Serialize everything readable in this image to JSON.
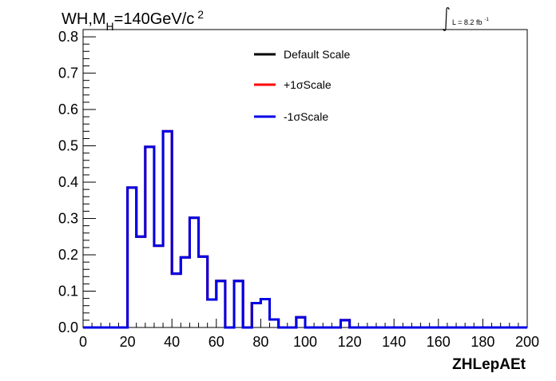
{
  "chart_data": {
    "type": "histogram",
    "title_main": "WH,M",
    "title_sub": "H",
    "title_rest": "=140GeV/c",
    "title_sup": "2",
    "lumi_label": "L = 8.2 fb",
    "lumi_sup": "-1",
    "xlabel": "ZHLepAEt",
    "xlim": [
      0,
      200
    ],
    "ylim": [
      0,
      0.82
    ],
    "xticks": [
      0,
      20,
      40,
      60,
      80,
      100,
      120,
      140,
      160,
      180,
      200
    ],
    "xtick_labels": [
      "0",
      "20",
      "40",
      "60",
      "80",
      "100",
      "120",
      "140",
      "160",
      "180",
      "200"
    ],
    "yticks": [
      0.0,
      0.1,
      0.2,
      0.3,
      0.4,
      0.5,
      0.6,
      0.7,
      0.8
    ],
    "ytick_labels": [
      "0.0",
      "0.1",
      "0.2",
      "0.3",
      "0.4",
      "0.5",
      "0.6",
      "0.7",
      "0.8"
    ],
    "bin_width": 4,
    "bin_edges_start": 0,
    "series": [
      {
        "name": "Default Scale",
        "color": "#000000",
        "values": [
          0,
          0,
          0,
          0,
          0,
          0.385,
          0.25,
          0.497,
          0.225,
          0.54,
          0.148,
          0.193,
          0.302,
          0.195,
          0.077,
          0.128,
          0,
          0.128,
          0,
          0.067,
          0.078,
          0.022,
          0,
          0,
          0.028,
          0,
          0,
          0,
          0,
          0.02,
          0,
          0,
          0,
          0,
          0,
          0,
          0,
          0,
          0,
          0,
          0,
          0,
          0,
          0,
          0,
          0,
          0,
          0,
          0,
          0
        ]
      },
      {
        "name": "+1σScale",
        "color": "#ff0000",
        "values": [
          0,
          0,
          0,
          0,
          0,
          0.385,
          0.25,
          0.497,
          0.225,
          0.54,
          0.148,
          0.193,
          0.302,
          0.195,
          0.077,
          0.128,
          0,
          0.128,
          0,
          0.067,
          0.078,
          0.022,
          0,
          0,
          0.028,
          0,
          0,
          0,
          0,
          0.02,
          0,
          0,
          0,
          0,
          0,
          0,
          0,
          0,
          0,
          0,
          0,
          0,
          0,
          0,
          0,
          0,
          0,
          0,
          0,
          0
        ]
      },
      {
        "name": "-1σScale",
        "color": "#0000e6",
        "values": [
          0,
          0,
          0,
          0,
          0,
          0.385,
          0.25,
          0.497,
          0.225,
          0.54,
          0.148,
          0.193,
          0.302,
          0.195,
          0.077,
          0.128,
          0,
          0.128,
          0,
          0.067,
          0.078,
          0.022,
          0,
          0,
          0.028,
          0,
          0,
          0,
          0,
          0.02,
          0,
          0,
          0,
          0,
          0,
          0,
          0,
          0,
          0,
          0,
          0,
          0,
          0,
          0,
          0,
          0,
          0,
          0,
          0,
          0
        ]
      }
    ],
    "legend_position": "top-center"
  }
}
